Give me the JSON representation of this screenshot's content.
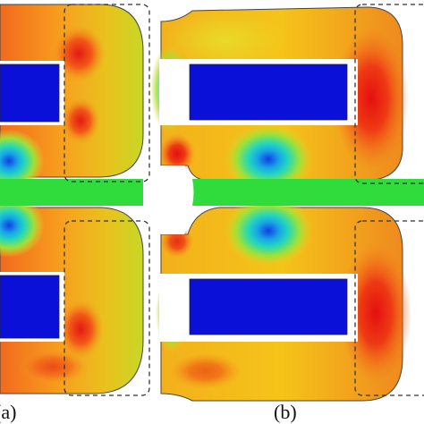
{
  "figure": {
    "panel_a": {
      "label": "(a)"
    },
    "panel_b": {
      "label": "(b)"
    }
  },
  "colors": {
    "magnet": "#0a10d8",
    "bridge": "#2fdc3c",
    "frame_stroke": "#444444",
    "dashed_box": "#333333",
    "background": "#ffffff"
  }
}
